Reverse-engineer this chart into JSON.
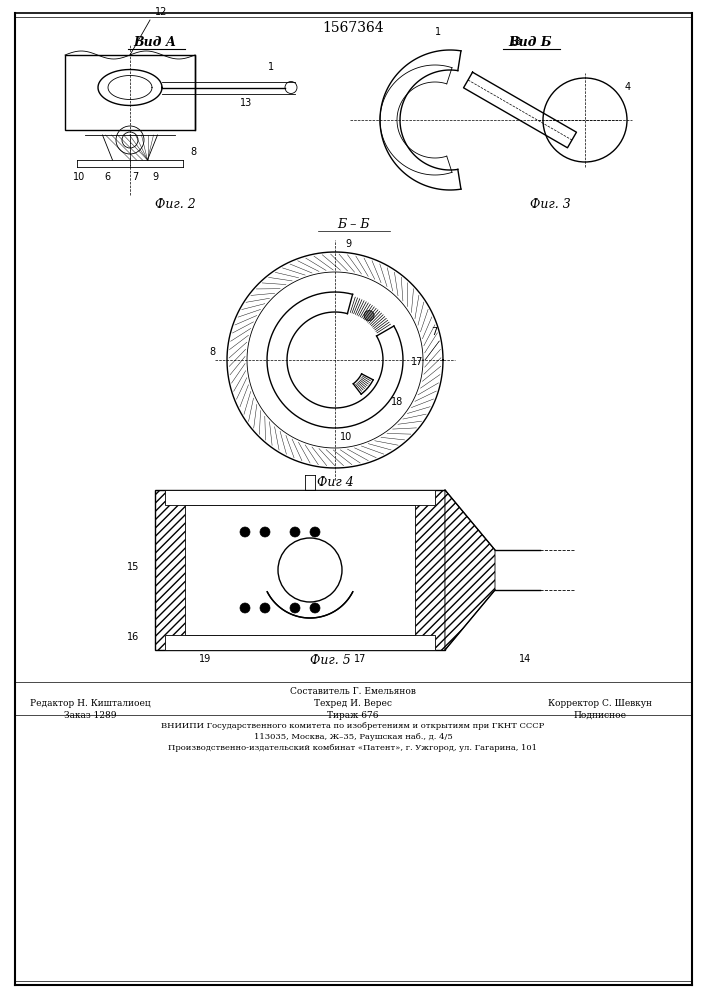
{
  "patent_number": "1567364",
  "bg": "#ffffff",
  "lc": "#000000",
  "fig_width": 7.07,
  "fig_height": 10.0,
  "view_a": "Вид А",
  "view_b": "Вид Б",
  "fig2_label": "Фиг. 2",
  "fig3_label": "Фиг. 3",
  "fig4_label": "Фиг 4",
  "fig5_label": "Фиг. 5",
  "section_label": "Б – Б",
  "footer_line1": "Составитель Г. Емельянов",
  "footer_line2_left": "Редактор Н. Кишталиоец",
  "footer_line2_mid": "Техред И. Верес",
  "footer_line2_right": "Корректор С. Шевкун",
  "footer_line3_left": "Заказ 1289",
  "footer_line3_mid": "Тираж 676",
  "footer_line3_right": "Подписное",
  "footer_org": "ВНИИПИ Государственного комитета по изобретениям и открытиям при ГКНТ СССР",
  "footer_addr1": "113035, Москва, Ж–35, Раушская наб., д. 4/5",
  "footer_addr2": "Производственно-издательский комбинат «Патент», г. Ужгород, ул. Гагарина, 101"
}
